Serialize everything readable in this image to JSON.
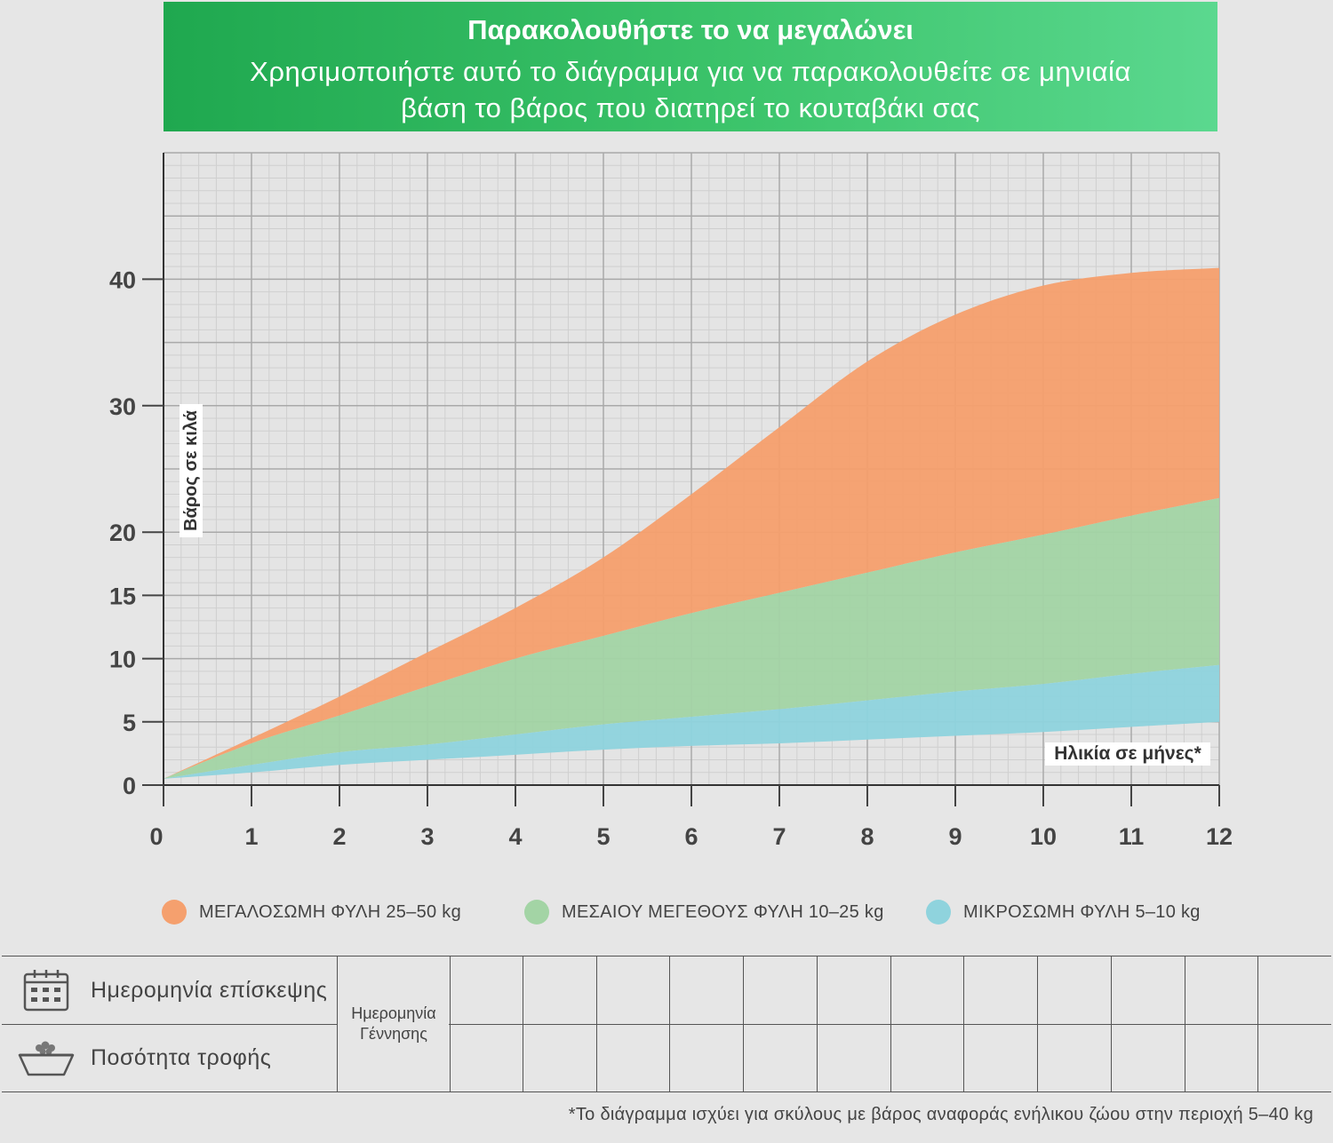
{
  "header": {
    "title": "Παρακολουθήστε το να μεγαλώνει",
    "subtitle_line1": "Χρησιμοποιήστε αυτό το διάγραμμα για να παρακολουθείτε σε μηνιαία",
    "subtitle_line2": "βάση το βάρος που διατηρεί το κουταβάκι σας"
  },
  "chart_data": {
    "type": "area",
    "ylabel": "Βάρος σε κιλά",
    "xlabel": "Ηλικία σε μήνες*",
    "x": [
      0,
      1,
      2,
      3,
      4,
      5,
      6,
      7,
      8,
      9,
      10,
      11,
      12
    ],
    "xlim": [
      0,
      12
    ],
    "ylim": [
      0,
      50
    ],
    "yticks": [
      0,
      5,
      10,
      15,
      20,
      30,
      40
    ],
    "grid": true,
    "series": [
      {
        "name": "ΜΕΓΑΛΟΣΩΜΗ ΦΥΛΗ 25–50 kg",
        "color": "#f5a06e",
        "lower": [
          0.5,
          3.3,
          5.5,
          7.8,
          10.0,
          11.8,
          13.6,
          15.2,
          16.8,
          18.4,
          19.8,
          21.3,
          22.7
        ],
        "upper": [
          0.5,
          3.7,
          7.0,
          10.5,
          14.0,
          18.0,
          23.0,
          28.3,
          33.5,
          37.2,
          39.5,
          40.5,
          40.9
        ]
      },
      {
        "name": "ΜΕΣΑΙΟΥ ΜΕΓΕΘΟΥΣ ΦΥΛΗ 10–25 kg",
        "color": "#a3d4a5",
        "lower": [
          0.5,
          1.6,
          2.6,
          3.2,
          4.0,
          4.8,
          5.4,
          6.0,
          6.7,
          7.4,
          8.0,
          8.8,
          9.5
        ],
        "upper": [
          0.5,
          3.3,
          5.5,
          7.8,
          10.0,
          11.8,
          13.6,
          15.2,
          16.8,
          18.4,
          19.8,
          21.3,
          22.7
        ]
      },
      {
        "name": "ΜΙΚΡΟΣΩΜΗ ΦΥΛΗ 5–10 kg",
        "color": "#8fd3dd",
        "lower": [
          0.5,
          1.0,
          1.6,
          2.0,
          2.4,
          2.8,
          3.1,
          3.3,
          3.6,
          3.9,
          4.2,
          4.6,
          5.0
        ],
        "upper": [
          0.5,
          1.6,
          2.6,
          3.2,
          4.0,
          4.8,
          5.4,
          6.0,
          6.7,
          7.4,
          8.0,
          8.8,
          9.5
        ]
      }
    ]
  },
  "legend": [
    {
      "label": "ΜΕΓΑΛΟΣΩΜΗ ΦΥΛΗ 25–50 kg",
      "color": "#f5a06e"
    },
    {
      "label": "ΜΕΣΑΙΟΥ ΜΕΓΕΘΟΥΣ ΦΥΛΗ 10–25 kg",
      "color": "#a3d4a5"
    },
    {
      "label": "ΜΙΚΡΟΣΩΜΗ ΦΥΛΗ 5–10 kg",
      "color": "#8fd3dd"
    }
  ],
  "table": {
    "row1_label": "Ημερομηνία επίσκεψης",
    "row1_icon": "calendar-icon",
    "row2_label": "Ποσότητα τροφής",
    "row2_icon": "food-bowl-icon",
    "birth_line1": "Ημερομηνία",
    "birth_line2": "Γέννησης"
  },
  "footnote": "*Το διάγραμμα ισχύει για σκύλους με βάρος αναφοράς ενήλικου ζώου στην περιοχή 5–40 kg"
}
